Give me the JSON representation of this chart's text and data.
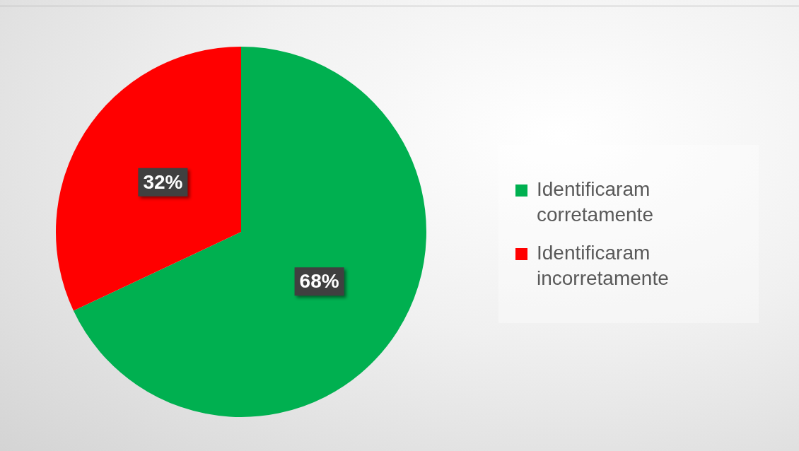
{
  "chart_data": {
    "type": "pie",
    "categories": [
      "Identificaram corretamente",
      "Identificaram incorretamente"
    ],
    "values": [
      68,
      32
    ],
    "colors": [
      "#00b050",
      "#ff0000"
    ],
    "value_labels": [
      "68%",
      "32%"
    ],
    "legend": "right"
  }
}
